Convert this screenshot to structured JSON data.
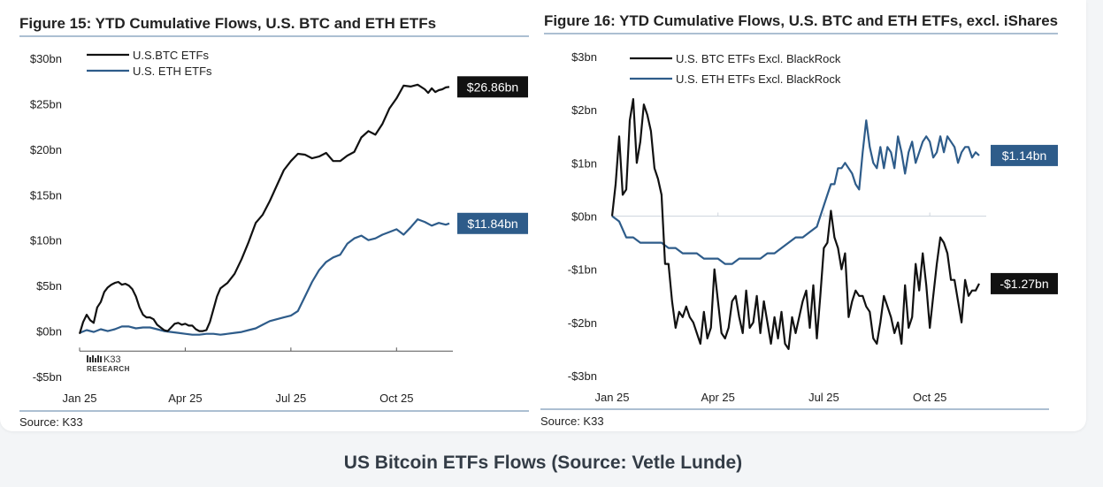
{
  "caption": "US Bitcoin ETFs Flows (Source: Vetle Lunde)",
  "colors": {
    "btc": "#111111",
    "eth": "#2e5c8a",
    "rule": "#5a7fa6",
    "text": "#222222"
  },
  "chart_data": [
    {
      "type": "line",
      "title": "Figure 15: YTD Cumulative Flows, U.S. BTC and ETH ETFs",
      "source": "Source: K33",
      "logo": {
        "name": "K33",
        "sub": "RESEARCH"
      },
      "ylim": [
        -5,
        30
      ],
      "yticks": [
        30,
        25,
        20,
        15,
        10,
        5,
        0,
        -5
      ],
      "ytick_labels": [
        "$30bn",
        "$25bn",
        "$20bn",
        "$15bn",
        "$10bn",
        "$5bn",
        "$0bn",
        "-$5bn"
      ],
      "xlim": [
        0,
        10.6
      ],
      "xticks": [
        0,
        3,
        6,
        9
      ],
      "xtick_labels": [
        "Jan 25",
        "Apr 25",
        "Jul 25",
        "Oct 25"
      ],
      "series": [
        {
          "name": "U.S.BTC ETFs",
          "key": "btc",
          "end_label": "$26.86bn",
          "x": [
            0,
            0.1,
            0.2,
            0.3,
            0.4,
            0.5,
            0.6,
            0.7,
            0.8,
            0.9,
            1.0,
            1.1,
            1.2,
            1.3,
            1.4,
            1.5,
            1.6,
            1.7,
            1.8,
            1.9,
            2.0,
            2.1,
            2.2,
            2.3,
            2.4,
            2.5,
            2.6,
            2.7,
            2.8,
            2.9,
            3.0,
            3.1,
            3.2,
            3.3,
            3.4,
            3.5,
            3.6,
            3.7,
            3.8,
            3.9,
            4.0,
            4.2,
            4.4,
            4.6,
            4.8,
            5.0,
            5.2,
            5.4,
            5.6,
            5.8,
            6.0,
            6.2,
            6.4,
            6.6,
            6.8,
            7.0,
            7.2,
            7.4,
            7.6,
            7.8,
            8.0,
            8.2,
            8.4,
            8.6,
            8.8,
            9.0,
            9.2,
            9.4,
            9.6,
            9.8,
            9.9,
            10.0,
            10.1,
            10.2,
            10.3,
            10.4,
            10.5
          ],
          "values": [
            -0.3,
            1.0,
            1.8,
            1.2,
            0.9,
            2.6,
            3.2,
            4.3,
            4.8,
            5.1,
            5.3,
            5.4,
            5.1,
            5.2,
            5.0,
            4.6,
            3.8,
            2.6,
            1.8,
            1.5,
            1.5,
            1.3,
            0.7,
            0.4,
            0.1,
            0.0,
            0.4,
            0.8,
            0.9,
            0.7,
            0.8,
            0.6,
            0.6,
            0.2,
            0.0,
            0.0,
            0.1,
            1.0,
            2.4,
            3.8,
            4.7,
            5.3,
            6.3,
            7.9,
            9.8,
            11.9,
            12.8,
            14.3,
            16.0,
            17.7,
            18.7,
            19.5,
            19.4,
            19.0,
            19.2,
            19.6,
            18.7,
            18.7,
            19.3,
            19.7,
            21.3,
            22.0,
            21.6,
            22.8,
            24.5,
            25.6,
            27.0,
            26.9,
            27.1,
            26.6,
            26.2,
            26.7,
            26.3,
            26.5,
            26.6,
            26.8,
            26.86
          ]
        },
        {
          "name": "U.S. ETH ETFs",
          "key": "eth",
          "end_label": "$11.84bn",
          "x": [
            0,
            0.2,
            0.4,
            0.6,
            0.8,
            1.0,
            1.2,
            1.4,
            1.6,
            1.8,
            2.0,
            2.2,
            2.4,
            2.6,
            2.8,
            3.0,
            3.2,
            3.4,
            3.6,
            3.8,
            4.0,
            4.2,
            4.4,
            4.6,
            4.8,
            5.0,
            5.2,
            5.4,
            5.6,
            5.8,
            6.0,
            6.2,
            6.4,
            6.6,
            6.8,
            7.0,
            7.2,
            7.4,
            7.6,
            7.8,
            8.0,
            8.2,
            8.4,
            8.6,
            8.8,
            9.0,
            9.2,
            9.4,
            9.6,
            9.8,
            10.0,
            10.2,
            10.4,
            10.5
          ],
          "values": [
            -0.2,
            0.1,
            -0.1,
            0.2,
            0.0,
            0.2,
            0.5,
            0.5,
            0.3,
            0.4,
            0.4,
            0.2,
            0.0,
            -0.1,
            -0.2,
            -0.3,
            -0.4,
            -0.4,
            -0.3,
            -0.3,
            -0.4,
            -0.3,
            -0.2,
            -0.1,
            0.1,
            0.3,
            0.7,
            1.1,
            1.3,
            1.5,
            1.7,
            2.2,
            3.8,
            5.4,
            6.7,
            7.6,
            8.1,
            8.4,
            9.6,
            10.2,
            10.5,
            10.0,
            10.2,
            10.6,
            10.9,
            11.2,
            10.6,
            11.4,
            12.3,
            12.0,
            11.6,
            11.9,
            11.7,
            11.84
          ]
        }
      ]
    },
    {
      "type": "line",
      "title": "Figure 16: YTD Cumulative Flows, U.S. BTC and ETH ETFs, excl. iShares",
      "source": "Source: K33",
      "ylim": [
        -3,
        3
      ],
      "yticks": [
        3,
        2,
        1,
        0,
        -1,
        -2,
        -3
      ],
      "ytick_labels": [
        "$3bn",
        "$2bn",
        "$1bn",
        "$0bn",
        "-$1bn",
        "-$2bn",
        "-$3bn"
      ],
      "xlim": [
        0,
        10.6
      ],
      "xticks": [
        0,
        3,
        6,
        9
      ],
      "xtick_labels": [
        "Jan 25",
        "Apr 25",
        "Jul 25",
        "Oct 25"
      ],
      "series": [
        {
          "name": "U.S. BTC ETFs Excl. BlackRock",
          "key": "btc",
          "end_label": "-$1.27bn",
          "x": [
            0,
            0.1,
            0.2,
            0.3,
            0.4,
            0.5,
            0.6,
            0.7,
            0.8,
            0.9,
            1.0,
            1.1,
            1.2,
            1.3,
            1.4,
            1.5,
            1.6,
            1.7,
            1.8,
            1.9,
            2.0,
            2.1,
            2.2,
            2.3,
            2.4,
            2.5,
            2.6,
            2.7,
            2.8,
            2.9,
            3.0,
            3.1,
            3.2,
            3.3,
            3.4,
            3.5,
            3.6,
            3.7,
            3.8,
            3.9,
            4.0,
            4.1,
            4.2,
            4.3,
            4.4,
            4.5,
            4.6,
            4.7,
            4.8,
            4.9,
            5.0,
            5.1,
            5.2,
            5.3,
            5.4,
            5.5,
            5.6,
            5.7,
            5.8,
            5.9,
            6.0,
            6.1,
            6.2,
            6.3,
            6.4,
            6.5,
            6.6,
            6.7,
            6.8,
            6.9,
            7.0,
            7.1,
            7.2,
            7.3,
            7.4,
            7.5,
            7.6,
            7.7,
            7.8,
            7.9,
            8.0,
            8.1,
            8.2,
            8.3,
            8.4,
            8.5,
            8.6,
            8.7,
            8.8,
            8.9,
            9.0,
            9.1,
            9.2,
            9.3,
            9.4,
            9.5,
            9.6,
            9.7,
            9.8,
            9.9,
            10.0,
            10.1,
            10.2,
            10.3,
            10.4
          ],
          "values": [
            0.0,
            0.6,
            1.5,
            0.4,
            0.5,
            1.8,
            2.2,
            1.0,
            1.4,
            2.1,
            1.9,
            1.6,
            0.9,
            0.7,
            0.4,
            -0.9,
            -0.9,
            -1.6,
            -2.1,
            -1.8,
            -1.9,
            -1.7,
            -1.9,
            -2.0,
            -2.2,
            -2.4,
            -1.8,
            -2.3,
            -2.1,
            -1.0,
            -1.6,
            -2.2,
            -2.3,
            -2.1,
            -1.6,
            -1.5,
            -1.9,
            -2.2,
            -1.4,
            -2.1,
            -2.0,
            -1.5,
            -2.2,
            -1.6,
            -2.0,
            -2.4,
            -1.9,
            -2.3,
            -1.8,
            -2.4,
            -2.5,
            -1.9,
            -2.2,
            -1.9,
            -1.6,
            -1.4,
            -2.1,
            -1.3,
            -2.3,
            -1.5,
            -0.6,
            -0.5,
            0.1,
            -0.4,
            -0.6,
            -1.0,
            -0.7,
            -1.9,
            -1.6,
            -1.4,
            -1.5,
            -1.5,
            -1.7,
            -1.8,
            -2.3,
            -2.4,
            -2.0,
            -1.5,
            -1.7,
            -1.9,
            -2.2,
            -2.0,
            -2.4,
            -1.3,
            -2.1,
            -1.9,
            -0.9,
            -1.4,
            -0.7,
            -1.3,
            -2.1,
            -1.5,
            -0.9,
            -0.4,
            -0.5,
            -0.7,
            -1.2,
            -1.2,
            -1.6,
            -2.0,
            -1.2,
            -1.5,
            -1.4,
            -1.4,
            -1.27
          ]
        },
        {
          "name": "U.S. ETH ETFs Excl. BlackRock",
          "key": "eth",
          "end_label": "$1.14bn",
          "x": [
            0,
            0.2,
            0.4,
            0.6,
            0.8,
            1.0,
            1.2,
            1.4,
            1.6,
            1.8,
            2.0,
            2.2,
            2.4,
            2.6,
            2.8,
            3.0,
            3.2,
            3.4,
            3.6,
            3.8,
            4.0,
            4.2,
            4.4,
            4.6,
            4.8,
            5.0,
            5.2,
            5.4,
            5.6,
            5.8,
            6.0,
            6.1,
            6.2,
            6.3,
            6.4,
            6.5,
            6.6,
            6.7,
            6.8,
            6.9,
            7.0,
            7.1,
            7.2,
            7.3,
            7.4,
            7.5,
            7.6,
            7.7,
            7.8,
            7.9,
            8.0,
            8.1,
            8.2,
            8.3,
            8.4,
            8.5,
            8.6,
            8.7,
            8.8,
            8.9,
            9.0,
            9.1,
            9.2,
            9.3,
            9.4,
            9.5,
            9.6,
            9.7,
            9.8,
            9.9,
            10.0,
            10.1,
            10.2,
            10.3,
            10.4
          ],
          "values": [
            0.0,
            -0.1,
            -0.4,
            -0.4,
            -0.5,
            -0.5,
            -0.5,
            -0.5,
            -0.6,
            -0.6,
            -0.7,
            -0.7,
            -0.7,
            -0.8,
            -0.8,
            -0.8,
            -0.9,
            -0.9,
            -0.8,
            -0.8,
            -0.8,
            -0.8,
            -0.7,
            -0.7,
            -0.6,
            -0.5,
            -0.4,
            -0.4,
            -0.3,
            -0.2,
            0.2,
            0.4,
            0.6,
            0.6,
            0.9,
            0.9,
            1.0,
            0.9,
            0.8,
            0.6,
            0.5,
            1.2,
            1.8,
            1.3,
            1.0,
            0.9,
            1.3,
            0.9,
            1.3,
            1.2,
            0.9,
            1.5,
            1.2,
            0.8,
            1.2,
            1.4,
            1.0,
            1.2,
            1.4,
            1.5,
            1.4,
            1.1,
            1.2,
            1.5,
            1.2,
            1.5,
            1.4,
            1.3,
            1.0,
            1.2,
            1.3,
            1.3,
            1.1,
            1.2,
            1.14
          ]
        }
      ]
    }
  ]
}
